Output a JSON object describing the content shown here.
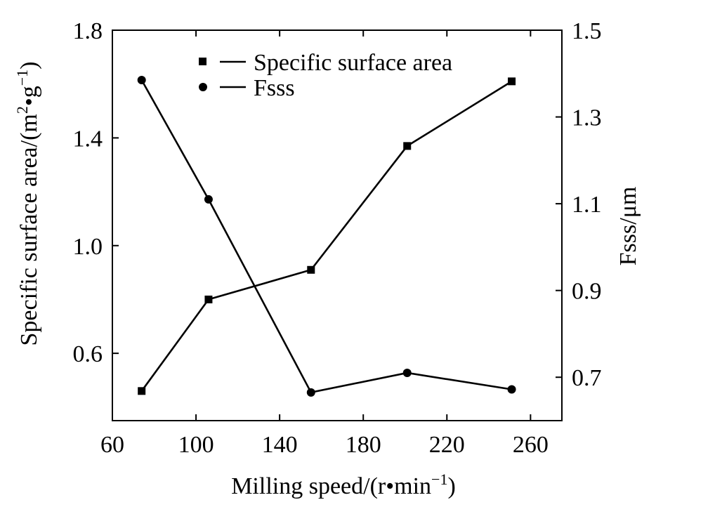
{
  "chart_data": {
    "type": "line",
    "x": [
      74,
      106,
      155,
      201,
      251
    ],
    "xlabel": "Milling speed/(r•min",
    "xlabel_sup": "−1",
    "xlabel_close": ")",
    "xlim": [
      60,
      275
    ],
    "xticks": [
      60,
      100,
      140,
      180,
      220,
      260
    ],
    "ylabel_left": "Specific surface area/(m",
    "ylabel_left_sup1": "2",
    "ylabel_left_mid": "•g",
    "ylabel_left_sup2": "−1",
    "ylabel_left_close": ")",
    "ylim_left": [
      0.35,
      1.8
    ],
    "yticks_left": [
      "0.6",
      "1.0",
      "1.4",
      "1.8"
    ],
    "ylabel_right": "Fsss/μm",
    "ylim_right": [
      0.6,
      1.5
    ],
    "yticks_right": [
      "0.7",
      "0.9",
      "1.1",
      "1.3",
      "1.5"
    ],
    "legend_position": "top-center",
    "grid": false,
    "series": [
      {
        "name": "Specific surface area",
        "axis": "left",
        "marker": "square",
        "values": [
          0.46,
          0.8,
          0.91,
          1.37,
          1.61
        ]
      },
      {
        "name": "Fsss",
        "axis": "right",
        "marker": "circle",
        "values": [
          1.385,
          1.11,
          0.665,
          0.71,
          0.672
        ]
      }
    ]
  }
}
